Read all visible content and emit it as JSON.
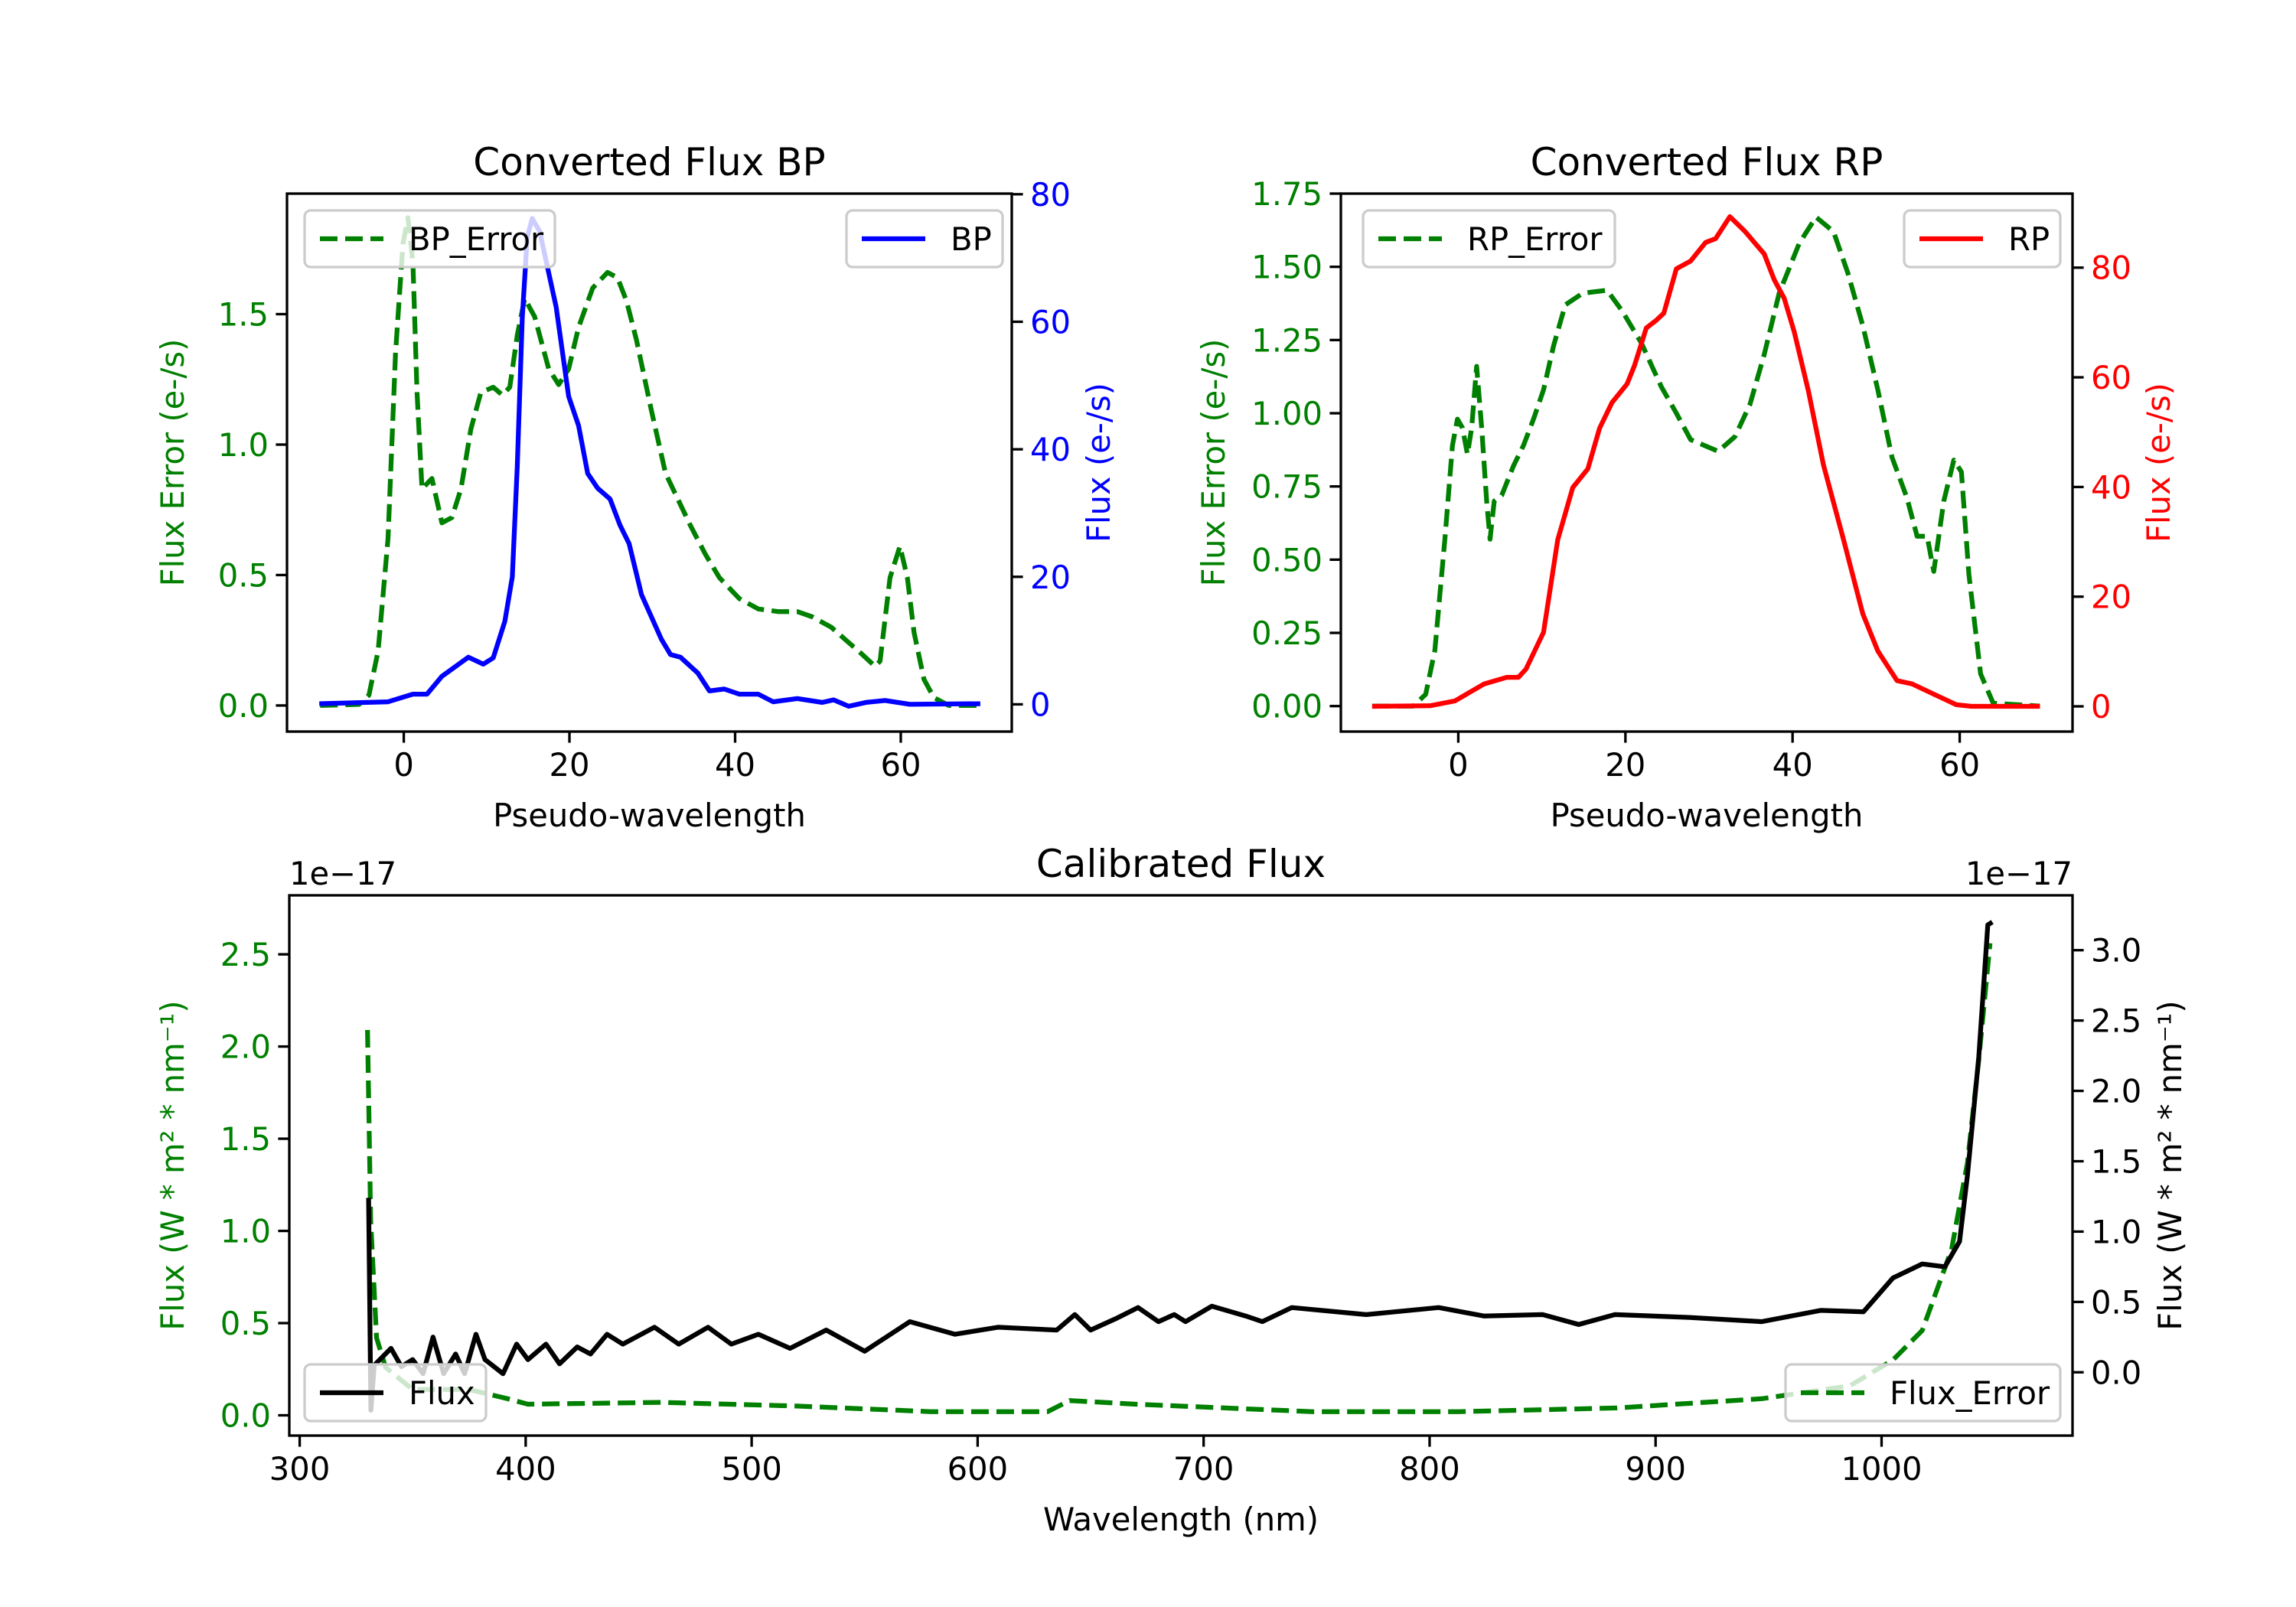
{
  "chart_data": [
    {
      "type": "line",
      "title": "Converted Flux BP",
      "xlabel": "Pseudo-wavelength",
      "ylabel_left": "Flux Error (e-/s)",
      "ylabel_right": "Flux (e-/s)",
      "left_color": "#008000",
      "right_color": "#0000ff",
      "xlim": [
        -14.1,
        73.4
      ],
      "ylim_left": [
        -0.1,
        1.962
      ],
      "ylim_right": [
        -4.27,
        80.1
      ],
      "xticks": [
        {
          "v": 0,
          "label": "0"
        },
        {
          "v": 20,
          "label": "20"
        },
        {
          "v": 40,
          "label": "40"
        },
        {
          "v": 60,
          "label": "60"
        }
      ],
      "yticks_left": [
        {
          "v": 0,
          "label": "0.0"
        },
        {
          "v": 0.5,
          "label": "0.5"
        },
        {
          "v": 1.0,
          "label": "1.0"
        },
        {
          "v": 1.5,
          "label": "1.5"
        }
      ],
      "yticks_right": [
        {
          "v": 0,
          "label": "0"
        },
        {
          "v": 20,
          "label": "20"
        },
        {
          "v": 40,
          "label": "40"
        },
        {
          "v": 60,
          "label": "60"
        },
        {
          "v": 80,
          "label": "80"
        }
      ],
      "offset_left": "",
      "offset_right": "",
      "series": [
        {
          "name": "BP_Error",
          "axis": "left",
          "color": "#008000",
          "style": "dashed",
          "x": [
            -10.1,
            -5.4,
            -4.2,
            -3.1,
            -1.9,
            -1.0,
            -0.1,
            0.5,
            1.1,
            1.6,
            2.2,
            3.4,
            4.6,
            5.8,
            6.9,
            8.1,
            9.3,
            10.8,
            11.9,
            12.8,
            13.7,
            14.6,
            15.8,
            17.5,
            18.7,
            19.9,
            21.1,
            22.8,
            24.6,
            25.8,
            26.9,
            28.1,
            29.9,
            31.6,
            34.6,
            36.4,
            38.1,
            40.5,
            42.8,
            45.2,
            47.5,
            49.3,
            51.6,
            53.4,
            55.2,
            56.9,
            57.5,
            58.7,
            59.9,
            60.8,
            61.6,
            62.8,
            64.0,
            65.8,
            69.3
          ],
          "y": [
            0,
            0.004,
            0.04,
            0.21,
            0.64,
            1.35,
            1.77,
            1.87,
            1.7,
            1.2,
            0.83,
            0.87,
            0.7,
            0.72,
            0.83,
            1.06,
            1.2,
            1.22,
            1.19,
            1.22,
            1.42,
            1.56,
            1.49,
            1.29,
            1.23,
            1.29,
            1.45,
            1.6,
            1.66,
            1.64,
            1.55,
            1.4,
            1.13,
            0.89,
            0.69,
            0.58,
            0.49,
            0.41,
            0.37,
            0.36,
            0.36,
            0.34,
            0.3,
            0.25,
            0.2,
            0.15,
            0.17,
            0.49,
            0.61,
            0.49,
            0.28,
            0.1,
            0.03,
            0,
            0
          ]
        },
        {
          "name": "BP",
          "axis": "right",
          "color": "#0000ff",
          "style": "solid",
          "x": [
            -10.2,
            -1.9,
            1.1,
            2.8,
            4.6,
            7.8,
            9.6,
            10.8,
            12.2,
            13.1,
            13.7,
            14.3,
            14.9,
            15.5,
            16.4,
            18.4,
            19.9,
            21.1,
            22.2,
            23.4,
            24.9,
            26.1,
            27.2,
            28.7,
            31.1,
            32.2,
            33.4,
            35.5,
            36.9,
            38.7,
            40.5,
            42.8,
            44.6,
            47.5,
            50.5,
            51.9,
            53.7,
            55.8,
            58.1,
            61.1,
            69.6
          ],
          "y": [
            0.1,
            0.4,
            1.6,
            1.6,
            4.4,
            7.4,
            6.3,
            7.3,
            13.0,
            20.0,
            37.4,
            60.6,
            73.3,
            76.2,
            74.2,
            62.3,
            48.3,
            43.7,
            36.2,
            33.9,
            32.2,
            28.1,
            25.2,
            17.2,
            10.2,
            7.8,
            7.4,
            4.9,
            2.1,
            2.4,
            1.6,
            1.6,
            0.4,
            0.9,
            0.3,
            0.7,
            -0.3,
            0.3,
            0.6,
            0,
            0.1
          ]
        }
      ],
      "legends": [
        {
          "placement": "upper left",
          "entries": [
            "BP_Error"
          ]
        },
        {
          "placement": "upper right",
          "entries": [
            "BP"
          ]
        }
      ]
    },
    {
      "type": "line",
      "title": "Converted Flux RP",
      "xlabel": "Pseudo-wavelength",
      "ylabel_left": "Flux Error (e-/s)",
      "ylabel_right": "Flux (e-/s)",
      "left_color": "#008000",
      "right_color": "#ff0000",
      "xlim": [
        -14.05,
        73.5
      ],
      "ylim_left": [
        -0.087,
        1.75
      ],
      "ylim_right": [
        -4.6,
        93.5
      ],
      "xticks": [
        {
          "v": 0,
          "label": "0"
        },
        {
          "v": 20,
          "label": "20"
        },
        {
          "v": 40,
          "label": "40"
        },
        {
          "v": 60,
          "label": "60"
        }
      ],
      "yticks_left": [
        {
          "v": 0,
          "label": "0.00"
        },
        {
          "v": 0.25,
          "label": "0.25"
        },
        {
          "v": 0.5,
          "label": "0.50"
        },
        {
          "v": 0.75,
          "label": "0.75"
        },
        {
          "v": 1.0,
          "label": "1.00"
        },
        {
          "v": 1.25,
          "label": "1.25"
        },
        {
          "v": 1.5,
          "label": "1.50"
        },
        {
          "v": 1.75,
          "label": "1.75"
        }
      ],
      "yticks_right": [
        {
          "v": 0,
          "label": "0"
        },
        {
          "v": 20,
          "label": "20"
        },
        {
          "v": 40,
          "label": "40"
        },
        {
          "v": 60,
          "label": "60"
        },
        {
          "v": 80,
          "label": "80"
        }
      ],
      "offset_left": "",
      "offset_right": "",
      "series": [
        {
          "name": "RP_Error",
          "axis": "left",
          "color": "#008000",
          "style": "dashed",
          "x": [
            -10.3,
            -5.4,
            -3.9,
            -2.8,
            -1.6,
            -0.7,
            -0.1,
            0.5,
            1.1,
            1.6,
            2.2,
            2.8,
            3.4,
            3.8,
            4.3,
            5.2,
            6.6,
            7.8,
            9.0,
            10.2,
            11.4,
            12.8,
            14.9,
            17.8,
            19.6,
            21.9,
            24.3,
            26.1,
            27.8,
            31.1,
            33.1,
            34.9,
            36.6,
            38.4,
            40.8,
            42.8,
            44.9,
            46.6,
            48.4,
            50.2,
            51.9,
            53.7,
            54.9,
            56.1,
            56.9,
            58.1,
            59.3,
            60.2,
            61.1,
            62.5,
            64.0,
            69.6
          ],
          "y": [
            0,
            0,
            0.04,
            0.19,
            0.57,
            0.89,
            0.98,
            0.95,
            0.86,
            0.95,
            1.16,
            0.95,
            0.7,
            0.57,
            0.7,
            0.72,
            0.82,
            0.89,
            0.98,
            1.08,
            1.23,
            1.37,
            1.41,
            1.42,
            1.35,
            1.24,
            1.09,
            1.0,
            0.91,
            0.87,
            0.92,
            1.03,
            1.2,
            1.41,
            1.58,
            1.67,
            1.62,
            1.48,
            1.3,
            1.08,
            0.85,
            0.71,
            0.58,
            0.58,
            0.46,
            0.7,
            0.84,
            0.8,
            0.45,
            0.11,
            0.01,
            0
          ]
        },
        {
          "name": "RP",
          "axis": "right",
          "color": "#ff0000",
          "style": "solid",
          "x": [
            -10.3,
            -3.4,
            -0.4,
            3.1,
            5.8,
            7.2,
            8.1,
            10.2,
            11.9,
            13.7,
            15.5,
            16.9,
            18.4,
            20.2,
            21.1,
            22.5,
            23.7,
            24.6,
            26.1,
            27.8,
            29.6,
            30.8,
            32.5,
            34.3,
            36.6,
            37.8,
            39.0,
            40.2,
            41.9,
            43.7,
            46.1,
            48.4,
            50.2,
            52.5,
            54.3,
            57.2,
            59.6,
            61.4,
            69.6
          ],
          "y": [
            0,
            0.1,
            1.0,
            4.1,
            5.3,
            5.3,
            6.8,
            13.5,
            30.4,
            39.9,
            43.3,
            50.7,
            55.4,
            58.8,
            62.2,
            69.0,
            70.4,
            71.7,
            79.8,
            81.2,
            84.6,
            85.3,
            89.3,
            86.6,
            82.5,
            77.8,
            74.4,
            68.3,
            57.5,
            44.0,
            30.4,
            16.9,
            10.1,
            4.7,
            4.1,
            2.0,
            0.3,
            0,
            0
          ]
        }
      ],
      "legends": [
        {
          "placement": "upper left",
          "entries": [
            "RP_Error"
          ]
        },
        {
          "placement": "upper right",
          "entries": [
            "RP"
          ]
        }
      ]
    },
    {
      "type": "line",
      "title": "Calibrated Flux",
      "xlabel": "Wavelength (nm)",
      "ylabel_left": "Flux (W * m² * nm⁻¹)",
      "ylabel_right": "Flux (W * m² * nm⁻¹)",
      "left_color": "#008000",
      "right_color": "#000000",
      "xlim": [
        295.4,
        1084.5
      ],
      "ylim_left": [
        -0.11,
        2.82
      ],
      "ylim_right": [
        -0.45,
        3.39
      ],
      "xticks": [
        {
          "v": 300,
          "label": "300"
        },
        {
          "v": 400,
          "label": "400"
        },
        {
          "v": 500,
          "label": "500"
        },
        {
          "v": 600,
          "label": "600"
        },
        {
          "v": 700,
          "label": "700"
        },
        {
          "v": 800,
          "label": "800"
        },
        {
          "v": 900,
          "label": "900"
        },
        {
          "v": 1000,
          "label": "1000"
        }
      ],
      "yticks_left": [
        {
          "v": 0,
          "label": "0.0"
        },
        {
          "v": 0.5,
          "label": "0.5"
        },
        {
          "v": 1.0,
          "label": "1.0"
        },
        {
          "v": 1.5,
          "label": "1.5"
        },
        {
          "v": 2.0,
          "label": "2.0"
        },
        {
          "v": 2.5,
          "label": "2.5"
        }
      ],
      "yticks_right": [
        {
          "v": 0,
          "label": "0.0"
        },
        {
          "v": 0.5,
          "label": "0.5"
        },
        {
          "v": 1.0,
          "label": "1.0"
        },
        {
          "v": 1.5,
          "label": "1.5"
        },
        {
          "v": 2.0,
          "label": "2.0"
        },
        {
          "v": 2.5,
          "label": "2.5"
        },
        {
          "v": 3.0,
          "label": "3.0"
        }
      ],
      "offset_left": "1e−17",
      "offset_right": "1e−17",
      "series": [
        {
          "name": "Flux_Error",
          "axis": "left",
          "color": "#008000",
          "style": "dashed",
          "x": [
            330,
            331.4,
            334,
            338,
            350,
            375,
            392,
            401,
            460,
            520,
            579,
            631,
            640.7,
            670,
            748,
            813,
            883,
            947,
            986,
            1005,
            1018,
            1031,
            1038,
            1043,
            1048
          ],
          "y": [
            2.09,
            1.06,
            0.42,
            0.26,
            0.14,
            0.14,
            0.09,
            0.06,
            0.07,
            0.05,
            0.02,
            0.02,
            0.08,
            0.06,
            0.02,
            0.02,
            0.04,
            0.09,
            0.16,
            0.3,
            0.46,
            0.9,
            1.37,
            1.93,
            2.56
          ]
        },
        {
          "name": "Flux",
          "axis": "right",
          "color": "#000000",
          "style": "solid",
          "x": [
            330.5,
            331.5,
            333,
            340.4,
            345,
            350,
            354.6,
            359,
            363.7,
            369,
            373,
            378,
            382,
            390,
            396,
            401,
            409,
            415,
            422.8,
            428.7,
            436,
            443,
            457,
            467.7,
            480.7,
            491,
            503,
            517,
            533,
            550,
            570,
            590,
            609,
            635,
            643,
            650,
            661,
            671,
            680,
            687,
            692,
            703.6,
            718.6,
            726,
            739,
            772,
            804,
            824,
            850,
            866,
            882,
            915,
            947,
            973,
            992,
            1005,
            1018,
            1028,
            1034.5,
            1038,
            1043,
            1047,
            1049
          ],
          "y": [
            1.24,
            -0.27,
            0.05,
            0.17,
            0.04,
            0.09,
            -0.01,
            0.25,
            -0.01,
            0.13,
            -0.01,
            0.27,
            0.09,
            -0.01,
            0.2,
            0.09,
            0.2,
            0.06,
            0.18,
            0.13,
            0.27,
            0.2,
            0.32,
            0.2,
            0.32,
            0.2,
            0.27,
            0.17,
            0.3,
            0.15,
            0.36,
            0.27,
            0.32,
            0.3,
            0.41,
            0.3,
            0.38,
            0.46,
            0.36,
            0.41,
            0.36,
            0.47,
            0.4,
            0.36,
            0.46,
            0.41,
            0.46,
            0.4,
            0.41,
            0.34,
            0.41,
            0.39,
            0.36,
            0.44,
            0.43,
            0.67,
            0.77,
            0.75,
            0.93,
            1.4,
            2.24,
            3.18,
            3.2
          ]
        }
      ],
      "legends": [
        {
          "placement": "lower left",
          "entries": [
            "Flux"
          ]
        },
        {
          "placement": "lower right",
          "entries": [
            "Flux_Error"
          ]
        }
      ]
    }
  ]
}
